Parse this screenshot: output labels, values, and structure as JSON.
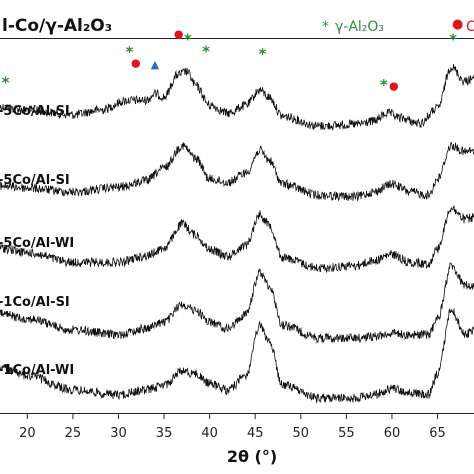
{
  "chart_data": {
    "type": "line",
    "title": "l-Co/γ-Al₂O₃",
    "xlabel": "2θ (°)",
    "ylabel": "",
    "xlim": [
      17,
      69
    ],
    "x_ticks": [
      20,
      25,
      30,
      35,
      40,
      45,
      50,
      55,
      60,
      65
    ],
    "x_tick_labels": [
      "20",
      "25",
      "30",
      "35",
      "40",
      "45",
      "50",
      "55",
      "60",
      "65"
    ],
    "grid": false,
    "legend": {
      "position": "top-right",
      "entries": [
        {
          "symbol": "*",
          "text": "γ-Al₂O₃",
          "color": "#2e8b3d"
        },
        {
          "symbol": "●",
          "text": "C",
          "color": "#e0161c"
        }
      ]
    },
    "colors": {
      "line": "#111111",
      "gamma_al2o3": "#2e8b3d",
      "cobalt_oxide": "#e0161c",
      "triangle": "#1f6fc4"
    },
    "series": [
      {
        "name": "-5Co/Al-SI",
        "profile": [
          [
            17,
            0.54
          ],
          [
            20,
            0.5
          ],
          [
            25,
            0.44
          ],
          [
            28,
            0.5
          ],
          [
            31,
            0.62
          ],
          [
            33,
            0.62
          ],
          [
            34,
            0.7
          ],
          [
            35,
            0.66
          ],
          [
            36.5,
            0.94
          ],
          [
            37.5,
            0.98
          ],
          [
            38.5,
            0.8
          ],
          [
            40,
            0.56
          ],
          [
            42,
            0.46
          ],
          [
            44,
            0.56
          ],
          [
            45.5,
            0.75
          ],
          [
            46.5,
            0.66
          ],
          [
            48,
            0.42
          ],
          [
            52,
            0.3
          ],
          [
            56,
            0.32
          ],
          [
            58,
            0.36
          ],
          [
            59.5,
            0.46
          ],
          [
            61,
            0.4
          ],
          [
            63,
            0.33
          ],
          [
            65,
            0.52
          ],
          [
            66.5,
            1.04
          ],
          [
            68,
            0.86
          ],
          [
            69,
            0.9
          ]
        ]
      },
      {
        "name": "-5Co/Al-SI",
        "profile": [
          [
            17,
            0.28
          ],
          [
            20,
            0.25
          ],
          [
            25,
            0.2
          ],
          [
            30,
            0.26
          ],
          [
            33,
            0.34
          ],
          [
            35,
            0.5
          ],
          [
            37,
            0.78
          ],
          [
            38.5,
            0.62
          ],
          [
            40,
            0.36
          ],
          [
            42,
            0.32
          ],
          [
            44,
            0.44
          ],
          [
            45.5,
            0.72
          ],
          [
            46.5,
            0.6
          ],
          [
            48,
            0.3
          ],
          [
            52,
            0.16
          ],
          [
            56,
            0.14
          ],
          [
            58,
            0.2
          ],
          [
            60,
            0.3
          ],
          [
            62,
            0.2
          ],
          [
            64,
            0.16
          ],
          [
            65,
            0.36
          ],
          [
            66.5,
            0.78
          ],
          [
            68,
            0.7
          ],
          [
            69,
            0.72
          ]
        ]
      },
      {
        "name": "-5Co/Al-WI",
        "profile": [
          [
            17,
            0.3
          ],
          [
            20,
            0.24
          ],
          [
            25,
            0.12
          ],
          [
            30,
            0.12
          ],
          [
            33,
            0.2
          ],
          [
            35,
            0.3
          ],
          [
            37,
            0.6
          ],
          [
            38.5,
            0.46
          ],
          [
            40,
            0.28
          ],
          [
            42,
            0.2
          ],
          [
            44,
            0.34
          ],
          [
            45.5,
            0.72
          ],
          [
            46.5,
            0.6
          ],
          [
            48,
            0.18
          ],
          [
            52,
            0.05
          ],
          [
            56,
            0.08
          ],
          [
            58,
            0.14
          ],
          [
            60,
            0.22
          ],
          [
            62,
            0.12
          ],
          [
            64,
            0.1
          ],
          [
            65,
            0.3
          ],
          [
            66.5,
            0.8
          ],
          [
            68,
            0.66
          ],
          [
            69,
            0.68
          ]
        ]
      },
      {
        "name": "-1Co/Al-SI",
        "profile": [
          [
            17,
            0.3
          ],
          [
            20,
            0.24
          ],
          [
            25,
            0.1
          ],
          [
            30,
            0.04
          ],
          [
            33,
            0.12
          ],
          [
            35,
            0.2
          ],
          [
            37,
            0.42
          ],
          [
            38.5,
            0.34
          ],
          [
            40,
            0.2
          ],
          [
            42,
            0.12
          ],
          [
            44,
            0.3
          ],
          [
            45.5,
            0.82
          ],
          [
            46.5,
            0.66
          ],
          [
            48,
            0.16
          ],
          [
            52,
            0.0
          ],
          [
            56,
            0.0
          ],
          [
            58,
            0.02
          ],
          [
            60,
            0.06
          ],
          [
            62,
            0.04
          ],
          [
            64,
            0.04
          ],
          [
            65,
            0.24
          ],
          [
            66.5,
            0.9
          ],
          [
            68,
            0.66
          ],
          [
            69,
            0.64
          ]
        ]
      },
      {
        "name": "-1Co/Al-WI",
        "profile": [
          [
            17,
            0.38
          ],
          [
            20,
            0.28
          ],
          [
            25,
            0.1
          ],
          [
            30,
            0.04
          ],
          [
            33,
            0.1
          ],
          [
            35,
            0.16
          ],
          [
            37,
            0.34
          ],
          [
            38.5,
            0.3
          ],
          [
            40,
            0.18
          ],
          [
            42,
            0.1
          ],
          [
            44,
            0.28
          ],
          [
            45.5,
            0.9
          ],
          [
            46.5,
            0.72
          ],
          [
            48,
            0.16
          ],
          [
            52,
            0.0
          ],
          [
            56,
            0.0
          ],
          [
            58,
            0.04
          ],
          [
            60,
            0.12
          ],
          [
            62,
            0.06
          ],
          [
            64,
            0.04
          ],
          [
            65,
            0.3
          ],
          [
            66.5,
            1.1
          ],
          [
            68,
            0.8
          ],
          [
            69,
            0.84
          ]
        ]
      }
    ],
    "annotations": [
      {
        "kind": "gamma_al2o3",
        "symbol": "*",
        "x": 17.6,
        "series": 0,
        "offset": 0.12
      },
      {
        "kind": "gamma_al2o3",
        "symbol": "*",
        "x": 31.2,
        "series": 0,
        "offset": 0.42
      },
      {
        "kind": "cobalt_oxide",
        "symbol": "●",
        "x": 31.9,
        "series": 0,
        "offset": 0.3
      },
      {
        "kind": "triangle",
        "symbol": "▲",
        "x": 34.0,
        "series": 0,
        "offset": 0.2
      },
      {
        "kind": "cobalt_oxide",
        "symbol": "●",
        "x": 36.6,
        "series": 0,
        "offset": 0.34
      },
      {
        "kind": "gamma_al2o3",
        "symbol": "*",
        "x": 37.6,
        "series": 0,
        "offset": 0.22
      },
      {
        "kind": "gamma_al2o3",
        "symbol": "*",
        "x": 39.6,
        "series": 0,
        "offset": 0.44
      },
      {
        "kind": "gamma_al2o3",
        "symbol": "*",
        "x": 45.8,
        "series": 0,
        "offset": 0.28
      },
      {
        "kind": "gamma_al2o3",
        "symbol": "*",
        "x": 59.1,
        "series": 0,
        "offset": 0.18
      },
      {
        "kind": "cobalt_oxide",
        "symbol": "●",
        "x": 60.2,
        "series": 0,
        "offset": 0.2
      },
      {
        "kind": "gamma_al2o3",
        "symbol": "*",
        "x": 66.7,
        "series": 0,
        "offset": 0.16
      }
    ]
  }
}
